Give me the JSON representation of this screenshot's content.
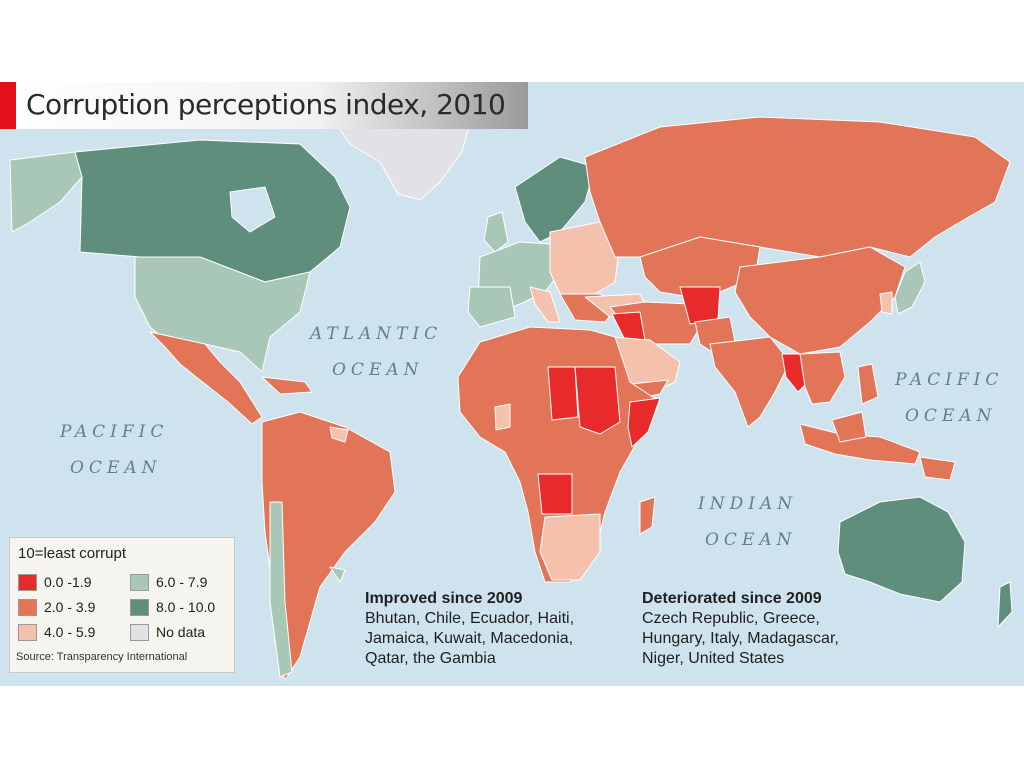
{
  "title": "Corruption perceptions index, 2010",
  "oceans": {
    "atlantic_line1": "ATLANTIC",
    "atlantic_line2": "OCEAN",
    "pacific_west_line1": "PACIFIC",
    "pacific_west_line2": "OCEAN",
    "pacific_east_line1": "PACIFIC",
    "pacific_east_line2": "OCEAN",
    "indian_line1": "INDIAN",
    "indian_line2": "OCEAN"
  },
  "legend": {
    "title": "10=least corrupt",
    "items": [
      {
        "label": "0.0 -1.9",
        "color": "#e82a2a"
      },
      {
        "label": "2.0 - 3.9",
        "color": "#e27458"
      },
      {
        "label": "4.0 - 5.9",
        "color": "#f4c2ac"
      },
      {
        "label": "6.0 - 7.9",
        "color": "#a9c7b7"
      },
      {
        "label": "8.0 - 10.0",
        "color": "#5f8e7c"
      },
      {
        "label": "No data",
        "color": "#e2e2e6"
      }
    ],
    "source": "Source: Transparency International"
  },
  "improved": {
    "heading": "Improved since 2009",
    "lines": [
      "Bhutan, Chile, Ecuador, Haiti,",
      "Jamaica, Kuwait, Macedonia,",
      "Qatar, the Gambia"
    ]
  },
  "deteriorated": {
    "heading": "Deteriorated since 2009",
    "lines": [
      "Czech Republic, Greece,",
      "Hungary, Italy, Madagascar,",
      "Niger, United States"
    ]
  },
  "colors": {
    "band_0_1_9": "#e82a2a",
    "band_2_3_9": "#e27458",
    "band_4_5_9": "#f4c2ac",
    "band_6_7_9": "#a9c7b7",
    "band_8_10": "#5f8e7c",
    "no_data": "#e2e2e6",
    "ocean": "#cfe3ee",
    "title_accent": "#e3121a"
  }
}
